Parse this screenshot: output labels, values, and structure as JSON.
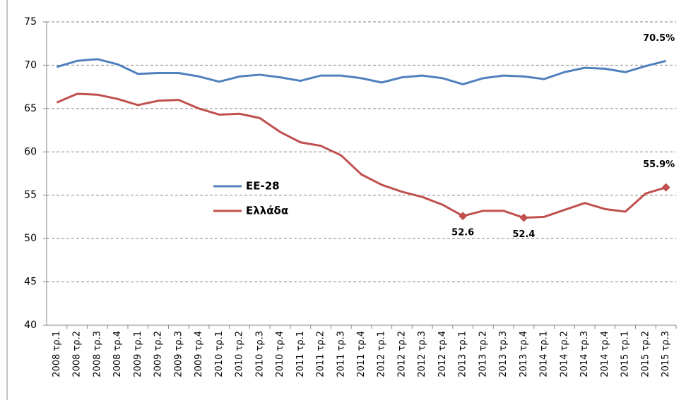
{
  "chart_data": {
    "type": "line",
    "categories": [
      "2008 τρ.1",
      "2008 τρ.2",
      "2008 τρ.3",
      "2008 τρ.4",
      "2009 τρ.1",
      "2009 τρ.2",
      "2009 τρ.3",
      "2009 τρ.4",
      "2010 τρ.1",
      "2010 τρ.2",
      "2010 τρ.3",
      "2010 τρ.4",
      "2011 τρ.1",
      "2011 τρ.2",
      "2011 τρ.3",
      "2011 τρ.4",
      "2012 τρ.1",
      "2012 τρ.2",
      "2012 τρ.3",
      "2012 τρ.4",
      "2013 τρ.1",
      "2013 τρ.2",
      "2013 τρ.3",
      "2013 τρ.4",
      "2014 τρ.1",
      "2014 τρ.2",
      "2014 τρ.3",
      "2014 τρ.4",
      "2015 τρ.1",
      "2015 τρ.2",
      "2015 τρ.3"
    ],
    "series": [
      {
        "name": "EE-28",
        "color": "#4f81bd",
        "values": [
          69.8,
          70.5,
          70.7,
          70.1,
          69.0,
          69.1,
          69.1,
          68.7,
          68.1,
          68.7,
          68.9,
          68.6,
          68.2,
          68.8,
          68.8,
          68.5,
          68.0,
          68.6,
          68.8,
          68.5,
          67.8,
          68.5,
          68.8,
          68.7,
          68.4,
          69.2,
          69.7,
          69.6,
          69.2,
          69.9,
          70.5
        ],
        "value_labels": [
          null,
          null,
          null,
          null,
          null,
          null,
          null,
          null,
          null,
          null,
          null,
          null,
          null,
          null,
          null,
          null,
          null,
          null,
          null,
          null,
          null,
          null,
          null,
          null,
          null,
          null,
          null,
          null,
          null,
          null,
          "70.5%"
        ]
      },
      {
        "name": "Ελλάδα",
        "color": "#c0504d",
        "marker": "diamond",
        "values": [
          65.7,
          66.7,
          66.6,
          66.1,
          65.4,
          65.9,
          66.0,
          65.0,
          64.3,
          64.4,
          63.9,
          62.3,
          61.1,
          60.7,
          59.6,
          57.4,
          56.2,
          55.4,
          54.8,
          53.9,
          52.6,
          53.2,
          53.2,
          52.4,
          52.5,
          53.3,
          54.1,
          53.4,
          53.1,
          55.2,
          55.9
        ],
        "value_labels": [
          null,
          null,
          null,
          null,
          null,
          null,
          null,
          null,
          null,
          null,
          null,
          null,
          null,
          null,
          null,
          null,
          null,
          null,
          null,
          null,
          "52.6",
          null,
          null,
          "52.4",
          null,
          null,
          null,
          null,
          null,
          null,
          "55.9%"
        ]
      }
    ],
    "ylim": [
      40,
      75
    ],
    "yticks": [
      40,
      45,
      50,
      55,
      60,
      65,
      70,
      75
    ],
    "grid": true,
    "legend": "center-left"
  }
}
